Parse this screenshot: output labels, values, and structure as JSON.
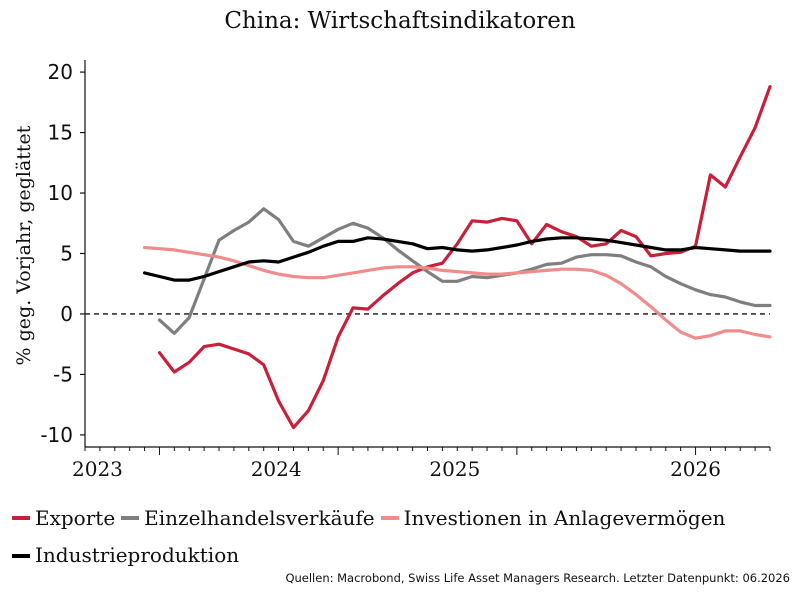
{
  "chart_data": {
    "type": "line",
    "title": "China: Wirtschaftsindikatoren",
    "ylabel": "% geg. Vorjahr, geglättet",
    "xlabel": "",
    "ylim": [
      -11,
      21
    ],
    "yticks": [
      20,
      15,
      10,
      5,
      0,
      -5,
      -10
    ],
    "xticks": [
      "2023",
      "2024",
      "2025",
      "2026"
    ],
    "x_start": "2022-08",
    "x_end": "2026-06",
    "zero_line": "dashed",
    "legend_position": "bottom",
    "series": [
      {
        "name": "Exporte",
        "color": "#c8203a",
        "values": [
          -3.2,
          -4.8,
          -4.0,
          -2.7,
          -2.5,
          -2.9,
          -3.3,
          -4.2,
          -7.2,
          -9.4,
          -8.0,
          -5.5,
          -1.9,
          0.5,
          0.4,
          1.5,
          2.5,
          3.4,
          3.9,
          4.2,
          5.8,
          7.7,
          7.6,
          7.9,
          7.7,
          5.8,
          7.4,
          6.8,
          6.4,
          5.6,
          5.8,
          6.9,
          6.4,
          4.8,
          5.0,
          5.1,
          5.6,
          11.5,
          10.5,
          13.0,
          15.4,
          18.8
        ]
      },
      {
        "name": "Einzelhandelsverkäufe",
        "color": "#7f7f7f",
        "values": [
          -0.5,
          -1.6,
          -0.3,
          2.9,
          6.1,
          6.9,
          7.6,
          8.7,
          7.8,
          6.0,
          5.6,
          6.3,
          7.0,
          7.5,
          7.1,
          6.3,
          5.3,
          4.4,
          3.5,
          2.7,
          2.7,
          3.1,
          3.0,
          3.2,
          3.4,
          3.7,
          4.1,
          4.2,
          4.7,
          4.9,
          4.9,
          4.8,
          4.3,
          3.9,
          3.1,
          2.5,
          2.0,
          1.6,
          1.4,
          1.0,
          0.7,
          0.7
        ]
      },
      {
        "name": "Investionen in Anlagevermögen",
        "color": "#f08c8c",
        "values": [
          5.5,
          5.4,
          5.3,
          5.1,
          4.9,
          4.7,
          4.4,
          4.0,
          3.6,
          3.3,
          3.1,
          3.0,
          3.0,
          3.2,
          3.4,
          3.6,
          3.8,
          3.9,
          3.9,
          3.8,
          3.6,
          3.5,
          3.4,
          3.3,
          3.3,
          3.4,
          3.5,
          3.6,
          3.7,
          3.7,
          3.6,
          3.2,
          2.5,
          1.6,
          0.6,
          -0.5,
          -1.5,
          -2.0,
          -1.8,
          -1.4,
          -1.4,
          -1.7,
          -1.9
        ]
      },
      {
        "name": "Industrieproduktion",
        "color": "#000000",
        "values": [
          3.4,
          3.1,
          2.8,
          2.8,
          3.1,
          3.5,
          3.9,
          4.3,
          4.4,
          4.3,
          4.7,
          5.1,
          5.6,
          6.0,
          6.0,
          6.3,
          6.2,
          6.0,
          5.8,
          5.4,
          5.5,
          5.3,
          5.2,
          5.3,
          5.5,
          5.7,
          6.0,
          6.2,
          6.3,
          6.3,
          6.2,
          6.1,
          5.9,
          5.7,
          5.5,
          5.3,
          5.3,
          5.5,
          5.4,
          5.3,
          5.2,
          5.2,
          5.2
        ]
      }
    ]
  },
  "source_text": "Quellen: Macrobond, Swiss Life Asset Managers Research. Letzter Datenpunkt: 06.2026"
}
